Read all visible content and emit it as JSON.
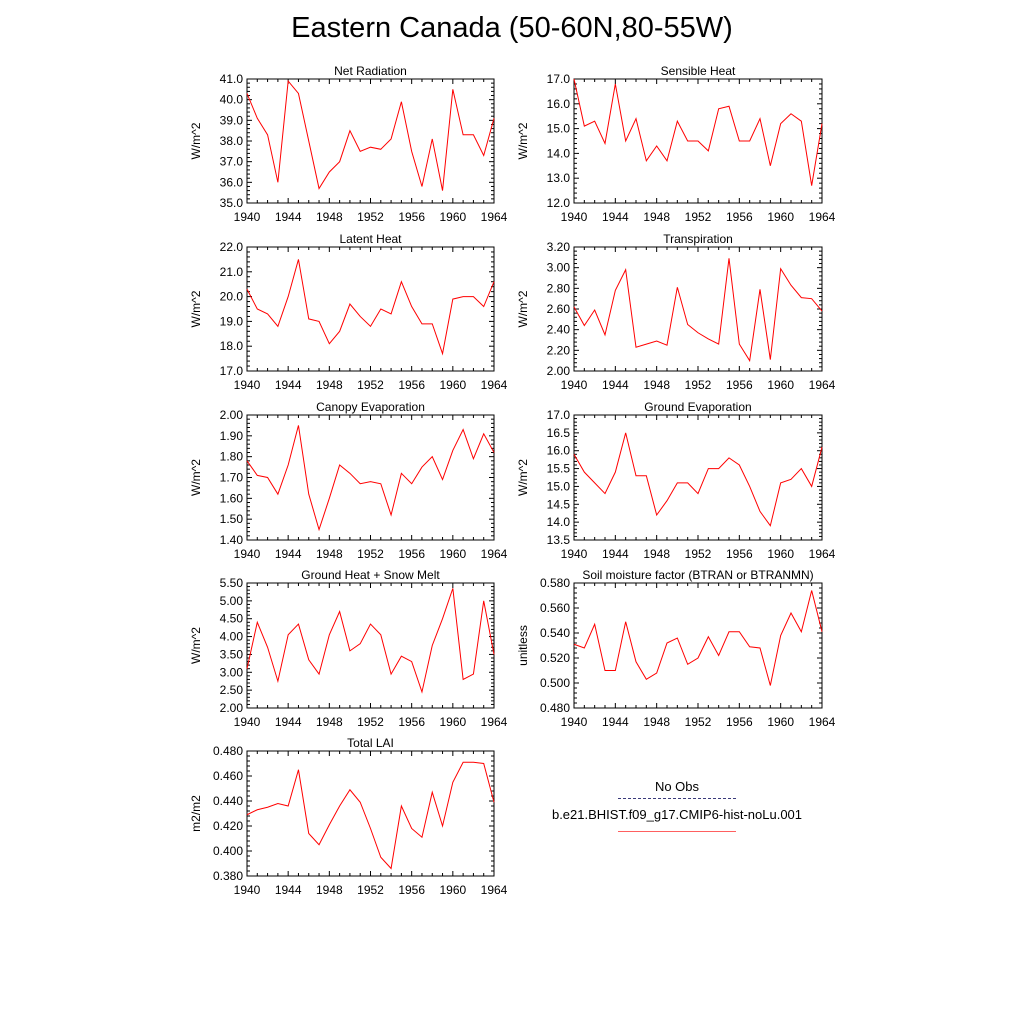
{
  "title": "Eastern Canada (50-60N,80-55W)",
  "legend": {
    "obs_label": "No Obs",
    "model_label": "b.e21.BHIST.f09_g17.CMIP6-hist-noLu.001",
    "obs_color": "#3a3a7a",
    "model_color": "#ff0000"
  },
  "chart_data": [
    {
      "type": "line",
      "title": "Net Radiation",
      "ylabel": "W/m^2",
      "xlim": [
        1940,
        1964
      ],
      "ylim": [
        35.0,
        41.0
      ],
      "yticks": [
        "35.0",
        "36.0",
        "37.0",
        "38.0",
        "39.0",
        "40.0",
        "41.0"
      ],
      "xticks": [
        "1940",
        "1944",
        "1948",
        "1952",
        "1956",
        "1960",
        "1964"
      ],
      "series": [
        {
          "color": "#ff0000",
          "x": [
            1940,
            1941,
            1942,
            1943,
            1944,
            1945,
            1946,
            1947,
            1948,
            1949,
            1950,
            1951,
            1952,
            1953,
            1954,
            1955,
            1956,
            1957,
            1958,
            1959,
            1960,
            1961,
            1962,
            1963,
            1964
          ],
          "values": [
            40.3,
            39.1,
            38.3,
            36.0,
            40.9,
            40.3,
            38.0,
            35.7,
            36.5,
            37.0,
            38.5,
            37.5,
            37.7,
            37.6,
            38.1,
            39.9,
            37.5,
            35.8,
            38.1,
            35.6,
            40.5,
            38.3,
            38.3,
            37.3,
            39.1
          ]
        }
      ]
    },
    {
      "type": "line",
      "title": "Sensible Heat",
      "ylabel": "W/m^2",
      "xlim": [
        1940,
        1964
      ],
      "ylim": [
        12.0,
        17.0
      ],
      "yticks": [
        "12.0",
        "13.0",
        "14.0",
        "15.0",
        "16.0",
        "17.0"
      ],
      "xticks": [
        "1940",
        "1944",
        "1948",
        "1952",
        "1956",
        "1960",
        "1964"
      ],
      "series": [
        {
          "color": "#ff0000",
          "x": [
            1940,
            1941,
            1942,
            1943,
            1944,
            1945,
            1946,
            1947,
            1948,
            1949,
            1950,
            1951,
            1952,
            1953,
            1954,
            1955,
            1956,
            1957,
            1958,
            1959,
            1960,
            1961,
            1962,
            1963,
            1964
          ],
          "values": [
            17.0,
            15.1,
            15.3,
            14.4,
            16.8,
            14.5,
            15.4,
            13.7,
            14.3,
            13.7,
            15.3,
            14.5,
            14.5,
            14.1,
            15.8,
            15.9,
            14.5,
            14.5,
            15.4,
            13.5,
            15.2,
            15.6,
            15.3,
            12.7,
            15.2
          ]
        }
      ]
    },
    {
      "type": "line",
      "title": "Latent Heat",
      "ylabel": "W/m^2",
      "xlim": [
        1940,
        1964
      ],
      "ylim": [
        17.0,
        22.0
      ],
      "yticks": [
        "17.0",
        "18.0",
        "19.0",
        "20.0",
        "21.0",
        "22.0"
      ],
      "xticks": [
        "1940",
        "1944",
        "1948",
        "1952",
        "1956",
        "1960",
        "1964"
      ],
      "series": [
        {
          "color": "#ff0000",
          "x": [
            1940,
            1941,
            1942,
            1943,
            1944,
            1945,
            1946,
            1947,
            1948,
            1949,
            1950,
            1951,
            1952,
            1953,
            1954,
            1955,
            1956,
            1957,
            1958,
            1959,
            1960,
            1961,
            1962,
            1963,
            1964
          ],
          "values": [
            20.3,
            19.5,
            19.3,
            18.8,
            20.0,
            21.5,
            19.1,
            19.0,
            18.1,
            18.6,
            19.7,
            19.2,
            18.8,
            19.5,
            19.3,
            20.6,
            19.6,
            18.9,
            18.9,
            17.7,
            19.9,
            20.0,
            20.0,
            19.6,
            20.6
          ]
        }
      ]
    },
    {
      "type": "line",
      "title": "Transpiration",
      "ylabel": "W/m^2",
      "xlim": [
        1940,
        1964
      ],
      "ylim": [
        2.0,
        3.2
      ],
      "yticks": [
        "2.00",
        "2.20",
        "2.40",
        "2.60",
        "2.80",
        "3.00",
        "3.20"
      ],
      "xticks": [
        "1940",
        "1944",
        "1948",
        "1952",
        "1956",
        "1960",
        "1964"
      ],
      "series": [
        {
          "color": "#ff0000",
          "x": [
            1940,
            1941,
            1942,
            1943,
            1944,
            1945,
            1946,
            1947,
            1948,
            1949,
            1950,
            1951,
            1952,
            1953,
            1954,
            1955,
            1956,
            1957,
            1958,
            1959,
            1960,
            1961,
            1962,
            1963,
            1964
          ],
          "values": [
            2.62,
            2.44,
            2.59,
            2.35,
            2.78,
            2.98,
            2.23,
            2.26,
            2.29,
            2.25,
            2.81,
            2.45,
            2.37,
            2.31,
            2.26,
            3.09,
            2.26,
            2.1,
            2.79,
            2.11,
            2.99,
            2.83,
            2.71,
            2.7,
            2.58
          ]
        }
      ]
    },
    {
      "type": "line",
      "title": "Canopy Evaporation",
      "ylabel": "W/m^2",
      "xlim": [
        1940,
        1964
      ],
      "ylim": [
        1.4,
        2.0
      ],
      "yticks": [
        "1.40",
        "1.50",
        "1.60",
        "1.70",
        "1.80",
        "1.90",
        "2.00"
      ],
      "xticks": [
        "1940",
        "1944",
        "1948",
        "1952",
        "1956",
        "1960",
        "1964"
      ],
      "series": [
        {
          "color": "#ff0000",
          "x": [
            1940,
            1941,
            1942,
            1943,
            1944,
            1945,
            1946,
            1947,
            1948,
            1949,
            1950,
            1951,
            1952,
            1953,
            1954,
            1955,
            1956,
            1957,
            1958,
            1959,
            1960,
            1961,
            1962,
            1963,
            1964
          ],
          "values": [
            1.78,
            1.71,
            1.7,
            1.62,
            1.76,
            1.95,
            1.62,
            1.45,
            1.6,
            1.76,
            1.72,
            1.67,
            1.68,
            1.67,
            1.52,
            1.72,
            1.67,
            1.75,
            1.8,
            1.69,
            1.83,
            1.93,
            1.79,
            1.91,
            1.82
          ]
        }
      ]
    },
    {
      "type": "line",
      "title": "Ground Evaporation",
      "ylabel": "W/m^2",
      "xlim": [
        1940,
        1964
      ],
      "ylim": [
        13.5,
        17.0
      ],
      "yticks": [
        "13.5",
        "14.0",
        "14.5",
        "15.0",
        "15.5",
        "16.0",
        "16.5",
        "17.0"
      ],
      "xticks": [
        "1940",
        "1944",
        "1948",
        "1952",
        "1956",
        "1960",
        "1964"
      ],
      "series": [
        {
          "color": "#ff0000",
          "x": [
            1940,
            1941,
            1942,
            1943,
            1944,
            1945,
            1946,
            1947,
            1948,
            1949,
            1950,
            1951,
            1952,
            1953,
            1954,
            1955,
            1956,
            1957,
            1958,
            1959,
            1960,
            1961,
            1962,
            1963,
            1964
          ],
          "values": [
            15.9,
            15.4,
            15.1,
            14.8,
            15.4,
            16.5,
            15.3,
            15.3,
            14.2,
            14.6,
            15.1,
            15.1,
            14.8,
            15.5,
            15.5,
            15.8,
            15.6,
            15.0,
            14.3,
            13.9,
            15.1,
            15.2,
            15.5,
            15.0,
            16.1
          ]
        }
      ]
    },
    {
      "type": "line",
      "title": "Ground Heat + Snow Melt",
      "ylabel": "W/m^2",
      "xlim": [
        1940,
        1964
      ],
      "ylim": [
        2.0,
        5.5
      ],
      "yticks": [
        "2.00",
        "2.50",
        "3.00",
        "3.50",
        "4.00",
        "4.50",
        "5.00",
        "5.50"
      ],
      "xticks": [
        "1940",
        "1944",
        "1948",
        "1952",
        "1956",
        "1960",
        "1964"
      ],
      "series": [
        {
          "color": "#ff0000",
          "x": [
            1940,
            1941,
            1942,
            1943,
            1944,
            1945,
            1946,
            1947,
            1948,
            1949,
            1950,
            1951,
            1952,
            1953,
            1954,
            1955,
            1956,
            1957,
            1958,
            1959,
            1960,
            1961,
            1962,
            1963,
            1964
          ],
          "values": [
            3.1,
            4.4,
            3.7,
            2.75,
            4.05,
            4.35,
            3.35,
            2.95,
            4.05,
            4.7,
            3.6,
            3.8,
            4.35,
            4.05,
            2.95,
            3.45,
            3.3,
            2.45,
            3.75,
            4.5,
            5.35,
            2.8,
            2.95,
            5.0,
            3.5
          ]
        }
      ]
    },
    {
      "type": "line",
      "title": "Soil moisture factor (BTRAN or BTRANMN)",
      "ylabel": "unitless",
      "xlim": [
        1940,
        1964
      ],
      "ylim": [
        0.48,
        0.58
      ],
      "yticks": [
        "0.480",
        "0.500",
        "0.520",
        "0.540",
        "0.560",
        "0.580"
      ],
      "xticks": [
        "1940",
        "1944",
        "1948",
        "1952",
        "1956",
        "1960",
        "1964"
      ],
      "series": [
        {
          "color": "#ff0000",
          "x": [
            1940,
            1941,
            1942,
            1943,
            1944,
            1945,
            1946,
            1947,
            1948,
            1949,
            1950,
            1951,
            1952,
            1953,
            1954,
            1955,
            1956,
            1957,
            1958,
            1959,
            1960,
            1961,
            1962,
            1963,
            1964
          ],
          "values": [
            0.531,
            0.528,
            0.547,
            0.51,
            0.51,
            0.549,
            0.517,
            0.503,
            0.508,
            0.532,
            0.536,
            0.515,
            0.52,
            0.537,
            0.522,
            0.541,
            0.541,
            0.529,
            0.528,
            0.498,
            0.538,
            0.556,
            0.541,
            0.574,
            0.541
          ]
        }
      ]
    },
    {
      "type": "line",
      "title": "Total LAI",
      "ylabel": "m2/m2",
      "xlim": [
        1940,
        1964
      ],
      "ylim": [
        0.38,
        0.48
      ],
      "yticks": [
        "0.380",
        "0.400",
        "0.420",
        "0.440",
        "0.460",
        "0.480"
      ],
      "xticks": [
        "1940",
        "1944",
        "1948",
        "1952",
        "1956",
        "1960",
        "1964"
      ],
      "series": [
        {
          "color": "#ff0000",
          "x": [
            1940,
            1941,
            1942,
            1943,
            1944,
            1945,
            1946,
            1947,
            1948,
            1949,
            1950,
            1951,
            1952,
            1953,
            1954,
            1955,
            1956,
            1957,
            1958,
            1959,
            1960,
            1961,
            1962,
            1963,
            1964
          ],
          "values": [
            0.429,
            0.433,
            0.435,
            0.438,
            0.436,
            0.465,
            0.414,
            0.405,
            0.421,
            0.436,
            0.449,
            0.439,
            0.418,
            0.395,
            0.386,
            0.436,
            0.418,
            0.411,
            0.447,
            0.42,
            0.455,
            0.471,
            0.471,
            0.47,
            0.439
          ]
        }
      ]
    }
  ]
}
